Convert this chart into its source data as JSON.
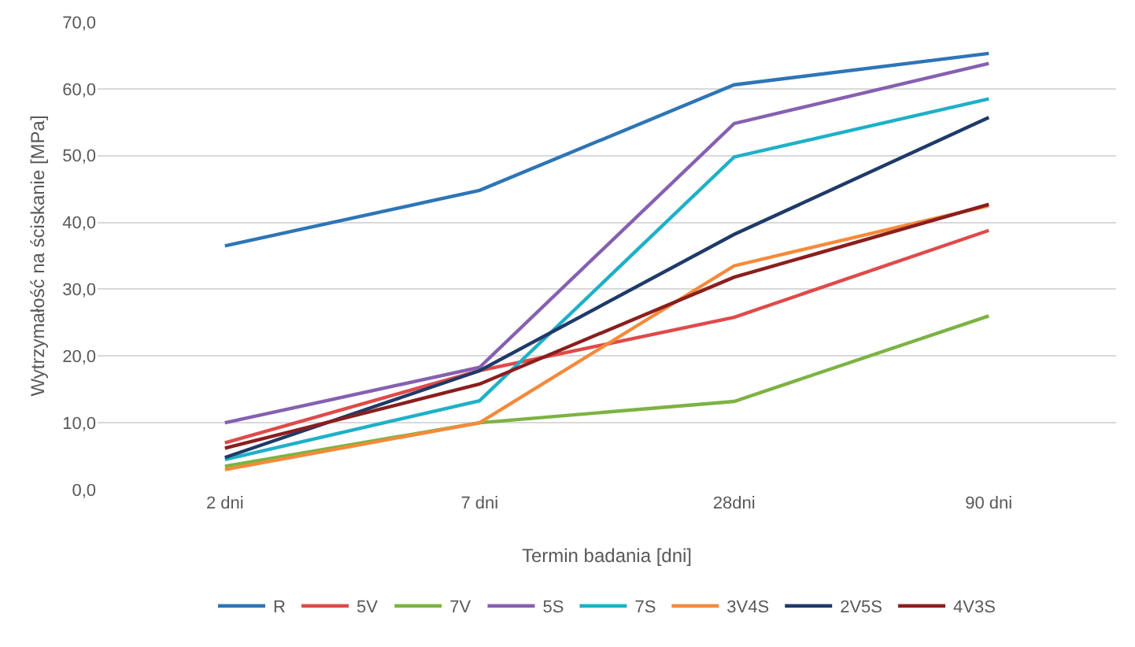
{
  "chart_data": {
    "type": "line",
    "xlabel": "Termin badania [dni]",
    "ylabel": "Wytrzymałość na ściskanie [MPa]",
    "categories": [
      "2 dni",
      "7 dni",
      "28dni",
      "90 dni"
    ],
    "series": [
      {
        "name": "R",
        "color": "#2e75b6",
        "values": [
          36.5,
          44.8,
          60.6,
          65.3
        ]
      },
      {
        "name": "5V",
        "color": "#e04a4a",
        "values": [
          7.0,
          17.8,
          25.8,
          38.8
        ]
      },
      {
        "name": "7V",
        "color": "#7cb342",
        "values": [
          3.5,
          10.0,
          13.2,
          26.0
        ]
      },
      {
        "name": "5S",
        "color": "#8660b0",
        "values": [
          10.0,
          18.3,
          54.8,
          63.8
        ]
      },
      {
        "name": "7S",
        "color": "#1fb0c8",
        "values": [
          4.5,
          13.3,
          49.8,
          58.5
        ]
      },
      {
        "name": "3V4S",
        "color": "#f58a3a",
        "values": [
          3.0,
          10.0,
          33.5,
          42.5
        ]
      },
      {
        "name": "2V5S",
        "color": "#1f3a68",
        "values": [
          4.8,
          17.8,
          38.2,
          55.7
        ]
      },
      {
        "name": "4V3S",
        "color": "#8b1e1e",
        "values": [
          6.2,
          15.8,
          31.8,
          42.7
        ]
      }
    ],
    "ylim": [
      0,
      70
    ],
    "yticks": [
      {
        "value": 0,
        "label": "0,0"
      },
      {
        "value": 10,
        "label": "10,0"
      },
      {
        "value": 20,
        "label": "20,0"
      },
      {
        "value": 30,
        "label": "30,0"
      },
      {
        "value": 40,
        "label": "40,0"
      },
      {
        "value": 50,
        "label": "50,0"
      },
      {
        "value": 60,
        "label": "60,0"
      },
      {
        "value": 70,
        "label": "70,0"
      }
    ],
    "grid": "y",
    "legend": "bottom",
    "marker": "none",
    "line_style": "solid"
  }
}
